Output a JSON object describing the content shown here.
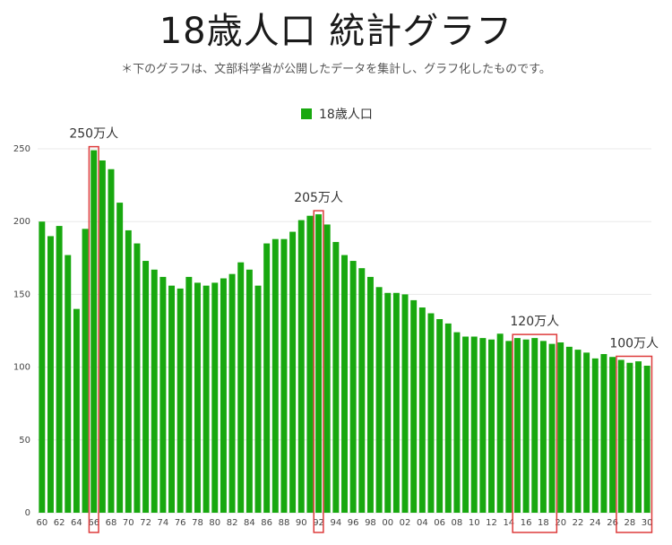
{
  "page": {
    "title": "18歳人口 統計グラフ",
    "subtitle": "＊下のグラフは、文部科学省が公開したデータを集計し、グラフ化したものです。"
  },
  "chart_data": {
    "type": "bar",
    "title": "18歳人口 統計グラフ",
    "xlabel": "",
    "ylabel": "",
    "ylim": [
      0,
      250
    ],
    "yticks": [
      0,
      50,
      100,
      150,
      200,
      250
    ],
    "grid": true,
    "legend": {
      "position": "top-center",
      "entries": [
        "18歳人口"
      ]
    },
    "colors": {
      "bar": "#18a80f",
      "highlight": "#dd3b3b",
      "grid": "#e8e8e8"
    },
    "categories": [
      "60",
      "61",
      "62",
      "63",
      "64",
      "65",
      "66",
      "67",
      "68",
      "69",
      "70",
      "71",
      "72",
      "73",
      "74",
      "75",
      "76",
      "77",
      "78",
      "79",
      "80",
      "81",
      "82",
      "83",
      "84",
      "85",
      "86",
      "87",
      "88",
      "89",
      "90",
      "91",
      "92",
      "93",
      "94",
      "95",
      "96",
      "97",
      "98",
      "99",
      "00",
      "01",
      "02",
      "03",
      "04",
      "05",
      "06",
      "07",
      "08",
      "09",
      "10",
      "11",
      "12",
      "13",
      "14",
      "15",
      "16",
      "17",
      "18",
      "19",
      "20",
      "21",
      "22",
      "23",
      "24",
      "25",
      "26",
      "27",
      "28",
      "29",
      "30"
    ],
    "tick_labels": [
      "60",
      "62",
      "64",
      "66",
      "68",
      "70",
      "72",
      "74",
      "76",
      "78",
      "80",
      "82",
      "84",
      "86",
      "88",
      "90",
      "92",
      "94",
      "96",
      "98",
      "00",
      "02",
      "04",
      "06",
      "08",
      "10",
      "12",
      "14",
      "16",
      "18",
      "20",
      "22",
      "24",
      "26",
      "28",
      "30"
    ],
    "series": [
      {
        "name": "18歳人口",
        "values": [
          200,
          190,
          197,
          177,
          140,
          195,
          249,
          242,
          236,
          213,
          194,
          185,
          173,
          167,
          162,
          156,
          154,
          162,
          158,
          156,
          158,
          161,
          164,
          172,
          167,
          156,
          185,
          188,
          188,
          193,
          201,
          204,
          205,
          198,
          186,
          177,
          173,
          168,
          162,
          155,
          151,
          151,
          150,
          146,
          141,
          137,
          133,
          130,
          124,
          121,
          121,
          120,
          119,
          123,
          118,
          120,
          119,
          120,
          118,
          116,
          117,
          114,
          112,
          110,
          106,
          109,
          107,
          105,
          103,
          104,
          101
        ]
      }
    ],
    "annotations": [
      {
        "label": "250万人",
        "from": "66",
        "to": "66"
      },
      {
        "label": "205万人",
        "from": "92",
        "to": "92"
      },
      {
        "label": "120万人",
        "from": "15",
        "to": "19"
      },
      {
        "label": "100万人",
        "from": "27",
        "to": "30"
      }
    ]
  }
}
